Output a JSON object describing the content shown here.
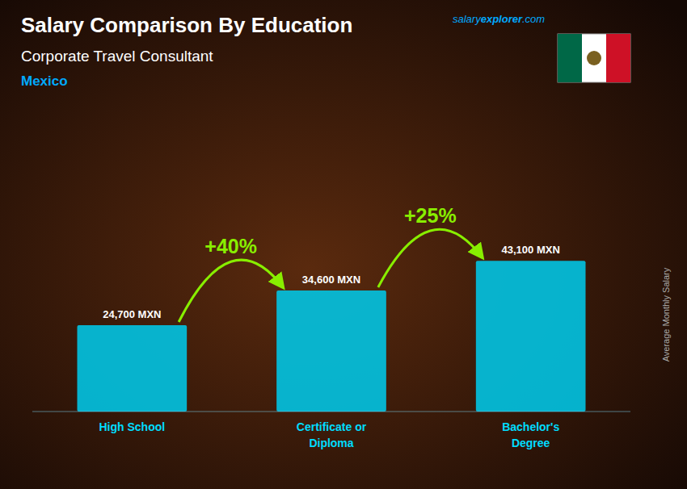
{
  "chart_data": {
    "type": "bar",
    "title": "Salary Comparison By Education",
    "subtitle": "Corporate Travel Consultant",
    "y_label": "Average Monthly Salary",
    "annotations": [
      "Mexico",
      "salary",
      "explorer",
      ".com",
      "+40%",
      "+25%"
    ],
    "categories": [
      "High School",
      "Certificate or\nDiploma",
      "Bachelor's\nDegree"
    ],
    "values": [
      24700,
      34600,
      43100
    ],
    "value_labels": [
      "24,700 MXN",
      "34,600 MXN",
      "43,100 MXN"
    ],
    "data_labels": true,
    "color": "#00c8e8",
    "ylim": [
      0,
      60000
    ],
    "tick_labels": "x",
    "grid": false
  }
}
